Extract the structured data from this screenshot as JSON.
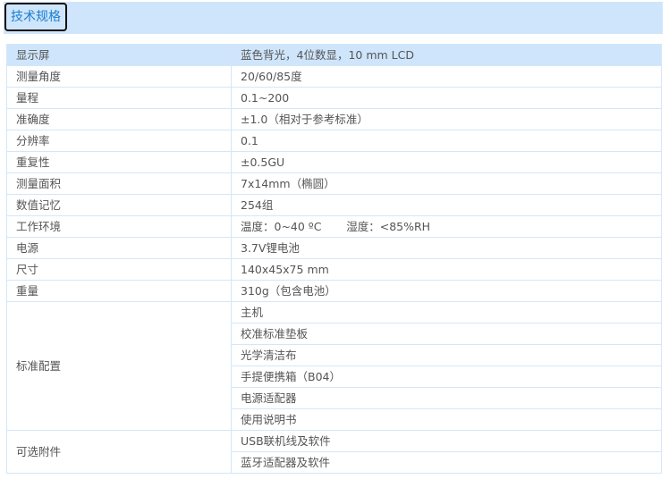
{
  "tab": {
    "label": "技术规格"
  },
  "rows": [
    {
      "key": "显示屏",
      "values": [
        "蓝色背光，4位数显，10 mm LCD"
      ]
    },
    {
      "key": "测量角度",
      "values": [
        "20/60/85度"
      ]
    },
    {
      "key": "量程",
      "values": [
        "0.1~200"
      ]
    },
    {
      "key": "准确度",
      "values": [
        "±1.0（相对于参考标准）"
      ]
    },
    {
      "key": "分辨率",
      "values": [
        "0.1"
      ]
    },
    {
      "key": "重复性",
      "values": [
        "±0.5GU"
      ]
    },
    {
      "key": "测量面积",
      "values": [
        "7x14mm（椭圆）"
      ]
    },
    {
      "key": "数值记忆",
      "values": [
        "254组"
      ]
    },
    {
      "key": "工作环境",
      "values": [
        "温度：0~40 ºC       湿度：<85%RH"
      ]
    },
    {
      "key": "电源",
      "values": [
        "3.7V锂电池"
      ]
    },
    {
      "key": "尺寸",
      "values": [
        "140x45x75 mm"
      ]
    },
    {
      "key": "重量",
      "values": [
        "310g（包含电池）"
      ]
    },
    {
      "key": "标准配置",
      "values": [
        "主机",
        "校准标准垫板",
        "光学清洁布",
        "手提便携箱（B04）",
        "电源适配器",
        "使用说明书"
      ]
    },
    {
      "key": "可选附件",
      "values": [
        "USB联机线及软件",
        "蓝牙适配器及软件"
      ]
    }
  ]
}
